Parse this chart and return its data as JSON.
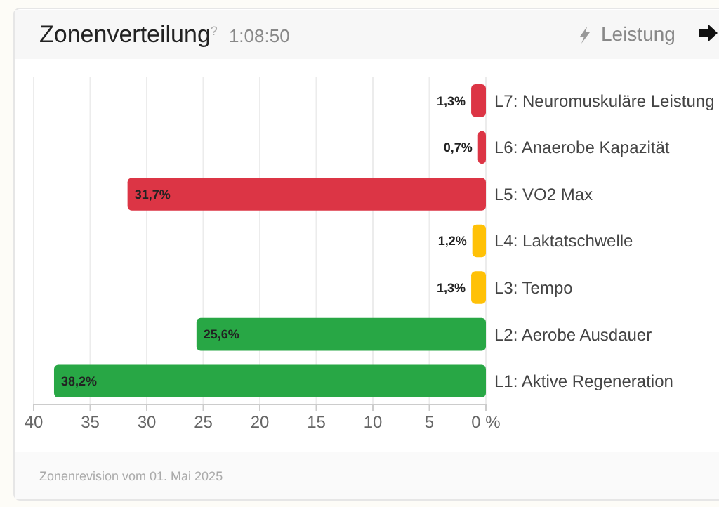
{
  "chart_data": {
    "type": "bar",
    "orientation": "horizontal",
    "title": "Zonenverteilung$^{?}$",
    "subtitle": "1:08:50",
    "annotations": [
      "Leistung",
      "Zonenrevision vom 01. Mai 2025"
    ],
    "categories": [
      "L7: Neuromuskuläre Leistung",
      "L6: Anaerobe Kapazität",
      "L5: VO2 Max",
      "L4: Laktatschwelle",
      "L3: Tempo",
      "L2: Aerobe Ausdauer",
      "L1: Aktive Regeneration"
    ],
    "values": [
      1.3,
      0.7,
      31.7,
      1.2,
      1.3,
      25.6,
      38.2
    ],
    "colors": [
      "#dc3545",
      "#dc3545",
      "#dc3545",
      "#ffc107",
      "#ffc107",
      "#28a745",
      "#28a745"
    ],
    "value_labels": [
      "1,3%",
      "0,7%",
      "31,7%",
      "1,2%",
      "1,3%",
      "25,6%",
      "38,2%"
    ],
    "xlim": [
      40,
      0
    ],
    "xticks": [
      40,
      35,
      30,
      25,
      20,
      15,
      10,
      5,
      {
        "value": 0,
        "label": "0 %"
      }
    ],
    "grid": "x"
  }
}
